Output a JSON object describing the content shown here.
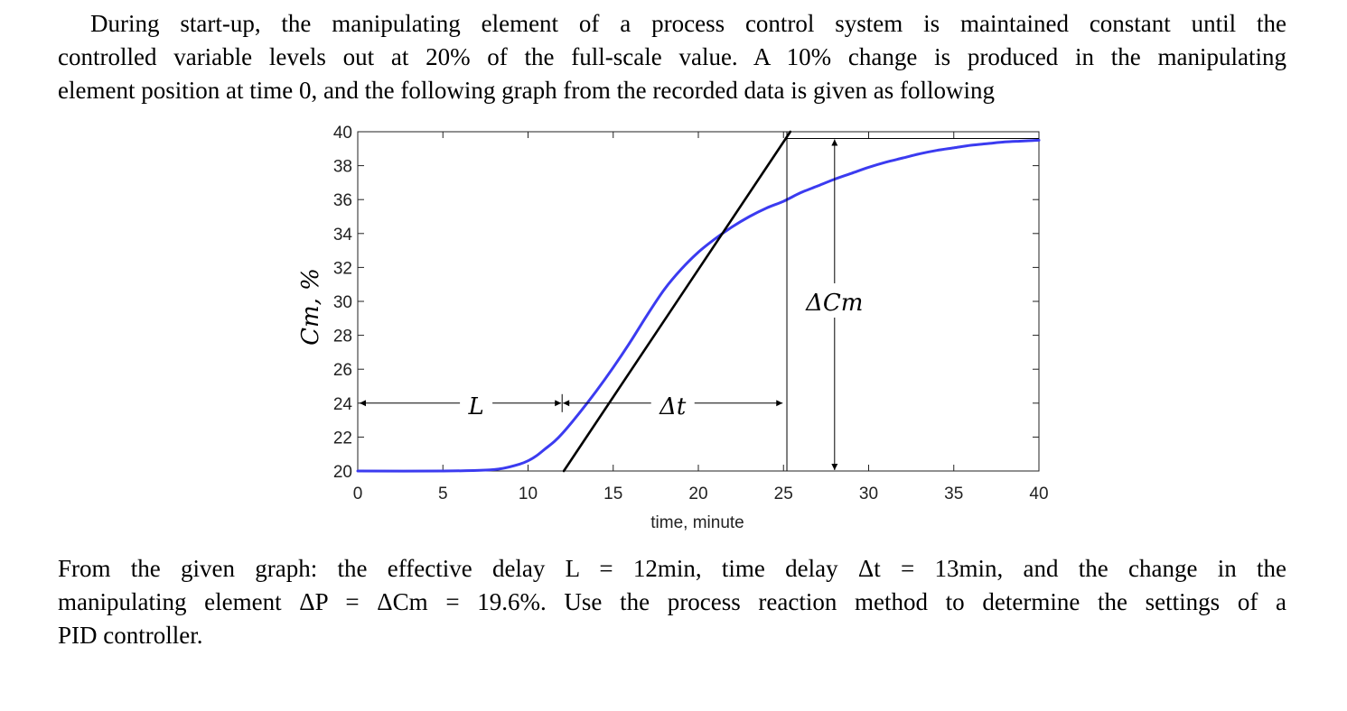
{
  "intro": {
    "line1": "During start-up, the manipulating element of a process control system is maintained constant until the",
    "line2": "controlled variable levels out at 20% of the full-scale value. A 10% change is produced in the manipulating",
    "line3": "element position at time 0, and the following graph from the recorded data is given as following"
  },
  "conclusion": {
    "line1": "From the given graph: the effective delay L = 12min, time delay Δt = 13min, and the change in the",
    "line2": "manipulating element ΔP = ΔCm = 19.6%. Use the process reaction method to determine the settings of a",
    "line3": "PID controller."
  },
  "chart_data": {
    "type": "line",
    "xlabel": "time, minute",
    "ylabel": "Cm, %",
    "xlim": [
      0,
      40
    ],
    "ylim": [
      20,
      40
    ],
    "x_ticks": [
      "0",
      "5",
      "10",
      "15",
      "20",
      "25",
      "30",
      "35",
      "40"
    ],
    "y_ticks": [
      "20",
      "22",
      "24",
      "26",
      "28",
      "30",
      "32",
      "34",
      "36",
      "38",
      "40"
    ],
    "grid": false,
    "series": [
      {
        "color": "#3b3bf0",
        "x": [
          0,
          5,
          7.5,
          8.5,
          9.5,
          10,
          10.5,
          11,
          11.5,
          12,
          13,
          14,
          15,
          16,
          17,
          18,
          19,
          20,
          21,
          22,
          23,
          24,
          25,
          26,
          27,
          28,
          29,
          30,
          31,
          32,
          33,
          34,
          35,
          36,
          37,
          38,
          39,
          40
        ],
        "y": [
          20,
          20,
          20.05,
          20.15,
          20.4,
          20.6,
          20.9,
          21.3,
          21.7,
          22.2,
          23.4,
          24.7,
          26.1,
          27.6,
          29.2,
          30.7,
          31.9,
          32.9,
          33.7,
          34.4,
          35,
          35.5,
          35.9,
          36.4,
          36.8,
          37.2,
          37.55,
          37.9,
          38.2,
          38.45,
          38.7,
          38.9,
          39.05,
          39.2,
          39.3,
          39.4,
          39.45,
          39.5
        ]
      },
      {
        "color": "#000000",
        "x": [
          12.1,
          25.4
        ],
        "y": [
          20,
          40
        ]
      }
    ],
    "annotations": {
      "L": {
        "label": "L",
        "from": 0,
        "to": 12,
        "at_y": 24
      },
      "dt": {
        "label": "Δt",
        "from": 12,
        "to": 25,
        "at_y": 24
      },
      "dCm": {
        "label": "ΔCm",
        "at_x": 28,
        "from": 20,
        "to": 39.6
      },
      "guide_x": [
        12,
        25.2
      ],
      "steady_level": 39.6
    }
  }
}
